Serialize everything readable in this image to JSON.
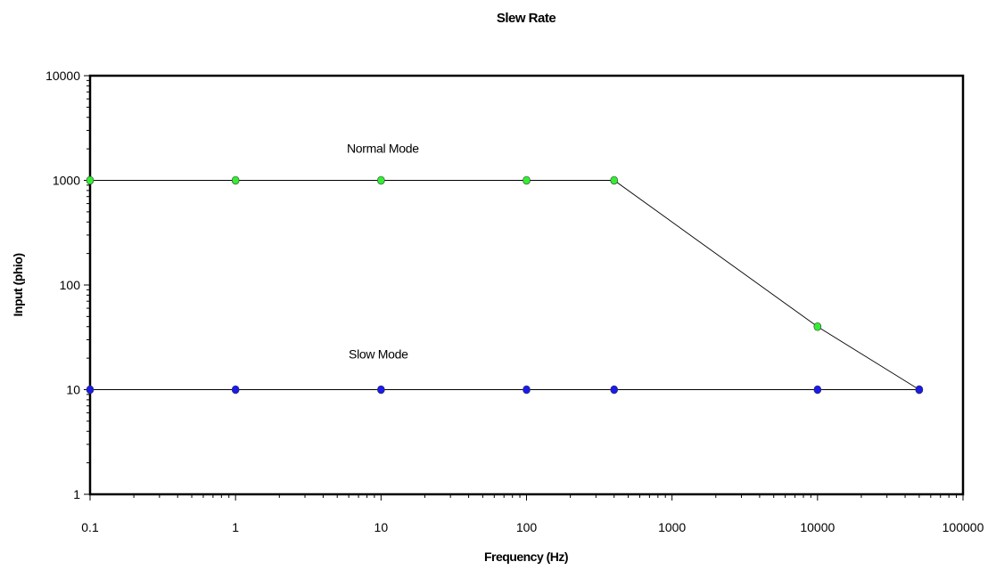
{
  "chart_data": {
    "type": "line",
    "title": "Slew Rate",
    "xlabel": "Frequency (Hz)",
    "ylabel": "Input (phio)",
    "xscale": "log",
    "yscale": "log",
    "xlim": [
      0.1,
      100000
    ],
    "ylim": [
      1,
      10000
    ],
    "x_ticks": [
      "0.1",
      "1",
      "10",
      "100",
      "1000",
      "10000",
      "100000"
    ],
    "y_ticks": [
      "1",
      "10",
      "100",
      "1000",
      "10000"
    ],
    "grid": false,
    "legend": "none",
    "series": [
      {
        "color": "#33ee33",
        "x": [
          0.1,
          1,
          10,
          100,
          400,
          10000,
          50000
        ],
        "y": [
          1000,
          1000,
          1000,
          1000,
          1000,
          40,
          10
        ]
      },
      {
        "color": "#1a1aee",
        "x": [
          0.1,
          1,
          10,
          100,
          400,
          10000,
          50000
        ],
        "y": [
          10,
          10,
          10,
          10,
          10,
          10,
          10
        ]
      }
    ],
    "annotations": [
      {
        "text": "Normal Mode",
        "x": 10,
        "y": 1000
      },
      {
        "text": "Slow Mode",
        "x": 10,
        "y": 10
      }
    ]
  }
}
